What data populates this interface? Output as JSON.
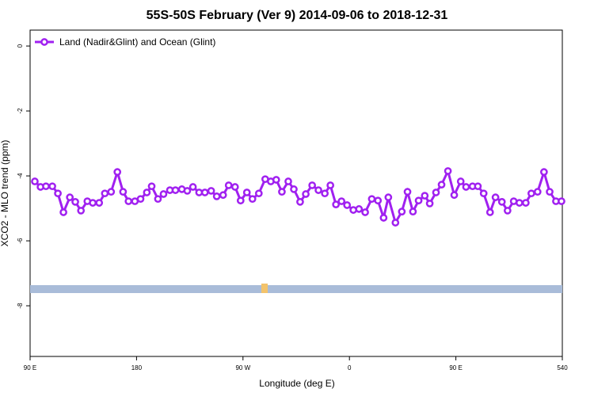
{
  "chart_data": {
    "type": "line",
    "title": "55S-50S February (Ver 9)   2014-09-06 to 2018-12-31",
    "x_label": "Longitude (deg E)",
    "y_label": "XCO2 - MLO trend (ppm)",
    "xlim": [
      90,
      540
    ],
    "xticks": [
      {
        "value": 90,
        "label": "90 E"
      },
      180,
      {
        "value": 270,
        "label": "90 W"
      },
      {
        "value": 360,
        "label": "0"
      },
      {
        "value": 450,
        "label": "90 E"
      },
      540
    ],
    "ylim": [
      -9.56,
      0.49
    ],
    "yticks": [
      0,
      -2,
      -4,
      -6,
      -8
    ],
    "legend": "top-left",
    "x": [
      94.0,
      98.8,
      103.4,
      108.8,
      113.5,
      118.2,
      123.6,
      128.2,
      133.0,
      138.4,
      143.0,
      148.4,
      153.2,
      158.5,
      163.8,
      168.6,
      173.2,
      178.6,
      183.4,
      188.7,
      192.8,
      198.1,
      202.8,
      208.2,
      212.9,
      218.3,
      222.9,
      227.7,
      232.9,
      237.8,
      243.1,
      247.8,
      253.2,
      257.9,
      263.3,
      268.0,
      273.3,
      278.0,
      283.4,
      288.8,
      293.5,
      298.1,
      302.9,
      308.3,
      313.0,
      318.3,
      323.1,
      328.5,
      333.8,
      339.2,
      343.9,
      348.6,
      353.3,
      358.0,
      363.3,
      368.1,
      373.3,
      378.9,
      384.1,
      388.9,
      392.9,
      398.9,
      404.3,
      409.1,
      413.7,
      418.5,
      423.7,
      427.9,
      433.2,
      437.9,
      443.3,
      448.6,
      454.1,
      458.6,
      464.1,
      468.6,
      473.5,
      478.9,
      483.5,
      488.9,
      493.7,
      498.9,
      503.7,
      509.1,
      513.8,
      519.1,
      524.5,
      529.3,
      534.6,
      539.3
    ],
    "series": [
      {
        "name": "Land (Nadir&Glint) and Ocean (Glint)",
        "color": "#a020f0",
        "values": [
          -4.17,
          -4.34,
          -4.32,
          -4.32,
          -4.54,
          -5.12,
          -4.66,
          -4.8,
          -5.07,
          -4.78,
          -4.83,
          -4.83,
          -4.54,
          -4.49,
          -3.88,
          -4.49,
          -4.78,
          -4.78,
          -4.71,
          -4.51,
          -4.32,
          -4.71,
          -4.56,
          -4.44,
          -4.44,
          -4.41,
          -4.46,
          -4.34,
          -4.51,
          -4.51,
          -4.46,
          -4.63,
          -4.59,
          -4.29,
          -4.34,
          -4.76,
          -4.51,
          -4.71,
          -4.54,
          -4.1,
          -4.17,
          -4.12,
          -4.49,
          -4.17,
          -4.41,
          -4.8,
          -4.56,
          -4.29,
          -4.44,
          -4.54,
          -4.29,
          -4.88,
          -4.78,
          -4.9,
          -5.05,
          -5.02,
          -5.12,
          -4.71,
          -4.76,
          -5.29,
          -4.66,
          -5.44,
          -5.1,
          -4.49,
          -5.1,
          -4.76,
          -4.61,
          -4.85,
          -4.51,
          -4.27,
          -3.85,
          -4.59,
          -4.17,
          -4.34,
          -4.32,
          -4.32,
          -4.54,
          -5.12,
          -4.66,
          -4.8,
          -5.07,
          -4.78,
          -4.83,
          -4.83,
          -4.54,
          -4.49,
          -3.88,
          -4.49,
          -4.78,
          -4.78
        ]
      }
    ]
  }
}
